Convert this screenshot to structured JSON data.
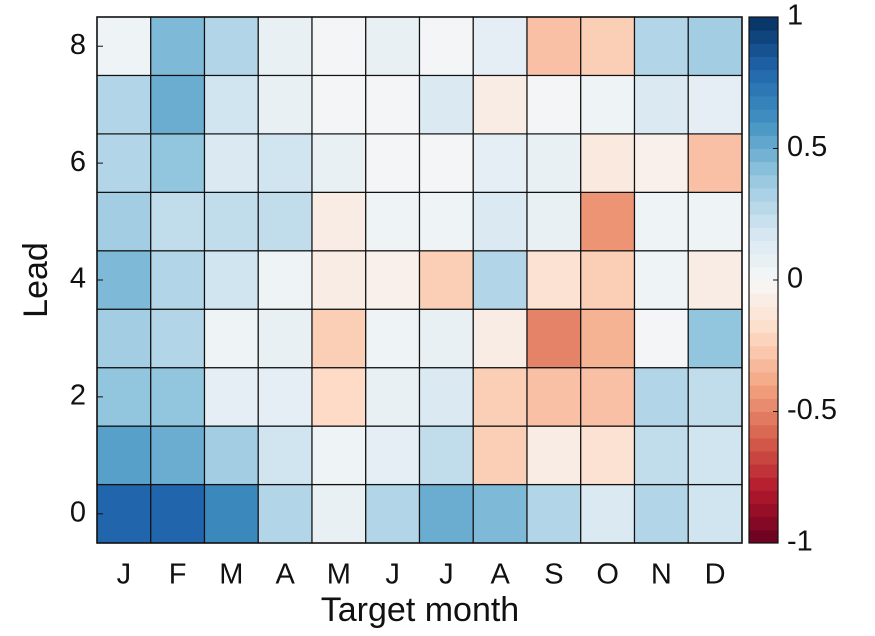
{
  "chart_data": {
    "type": "heatmap",
    "x_label": "Target month",
    "y_label": "Lead",
    "categories": [
      "J",
      "F",
      "M",
      "A",
      "M",
      "J",
      "J",
      "A",
      "S",
      "O",
      "N",
      "D"
    ],
    "y": [
      0,
      1,
      2,
      3,
      4,
      5,
      6,
      7,
      8
    ],
    "ylim": [
      -0.5,
      8.5
    ],
    "yticks": [
      0,
      2,
      4,
      6,
      8
    ],
    "values": [
      [
        0.8,
        0.8,
        0.65,
        0.3,
        0.08,
        0.3,
        0.5,
        0.45,
        0.3,
        0.15,
        0.3,
        0.2
      ],
      [
        0.55,
        0.5,
        0.35,
        0.2,
        0.05,
        0.1,
        0.25,
        -0.25,
        -0.08,
        -0.15,
        0.25,
        0.2
      ],
      [
        0.4,
        0.4,
        0.1,
        0.1,
        -0.2,
        0.08,
        0.15,
        -0.25,
        -0.3,
        -0.3,
        0.3,
        0.25
      ],
      [
        0.35,
        0.3,
        0.05,
        0.08,
        -0.25,
        0.05,
        0.08,
        -0.08,
        -0.5,
        -0.35,
        0.02,
        0.4
      ],
      [
        0.45,
        0.3,
        0.2,
        0.05,
        -0.08,
        -0.05,
        -0.25,
        0.3,
        -0.15,
        -0.25,
        0.05,
        -0.08
      ],
      [
        0.35,
        0.25,
        0.25,
        0.25,
        -0.08,
        0.05,
        0.05,
        0.15,
        0.08,
        -0.45,
        0.05,
        0.05
      ],
      [
        0.3,
        0.4,
        0.15,
        0.2,
        0.08,
        0.02,
        0.02,
        0.1,
        0.08,
        -0.1,
        -0.05,
        -0.3
      ],
      [
        0.3,
        0.5,
        0.2,
        0.08,
        0.02,
        0.02,
        0.15,
        -0.08,
        0.02,
        0.05,
        0.15,
        0.1
      ],
      [
        0.05,
        0.45,
        0.3,
        0.08,
        0.02,
        0.08,
        0.02,
        0.1,
        -0.3,
        -0.25,
        0.3,
        0.35
      ]
    ],
    "zlim": [
      -1,
      1
    ],
    "zticks": [
      1,
      0.5,
      0,
      -0.5,
      -1
    ],
    "colormap": [
      "#67001f",
      "#b2182b",
      "#d6604d",
      "#f4a582",
      "#fddbc7",
      "#f7f7f7",
      "#d1e5f0",
      "#92c5de",
      "#4393c3",
      "#2166ac",
      "#053061"
    ]
  }
}
